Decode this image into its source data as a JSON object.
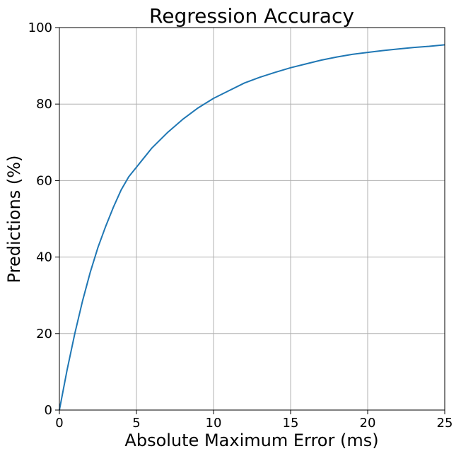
{
  "chart_data": {
    "type": "line",
    "title": "Regression Accuracy",
    "xlabel": "Absolute Maximum Error (ms)",
    "ylabel": "Predictions (%)",
    "xlim": [
      0,
      25
    ],
    "ylim": [
      0,
      100
    ],
    "xticks": [
      "0",
      "5",
      "10",
      "15",
      "20",
      "25"
    ],
    "yticks": [
      "0",
      "20",
      "40",
      "60",
      "80",
      "100"
    ],
    "grid": true,
    "colors": {
      "line": "#1f77b4",
      "grid": "#b0b0b0"
    },
    "series": [
      {
        "x": [
          0,
          0.5,
          1,
          1.5,
          2,
          2.5,
          3,
          3.5,
          4,
          4.5,
          5,
          5.5,
          6,
          7,
          8,
          9,
          10,
          11,
          12,
          13,
          14,
          15,
          16,
          17,
          18,
          19,
          20,
          21,
          22,
          23,
          24,
          25
        ],
        "y": [
          0,
          10.5,
          20,
          28.5,
          36,
          42.5,
          48,
          53,
          57.5,
          61,
          63.5,
          66,
          68.5,
          72.5,
          76,
          79,
          81.5,
          83.5,
          85.5,
          87,
          88.3,
          89.5,
          90.5,
          91.5,
          92.3,
          93,
          93.5,
          94,
          94.4,
          94.8,
          95.1,
          95.5
        ]
      }
    ]
  }
}
